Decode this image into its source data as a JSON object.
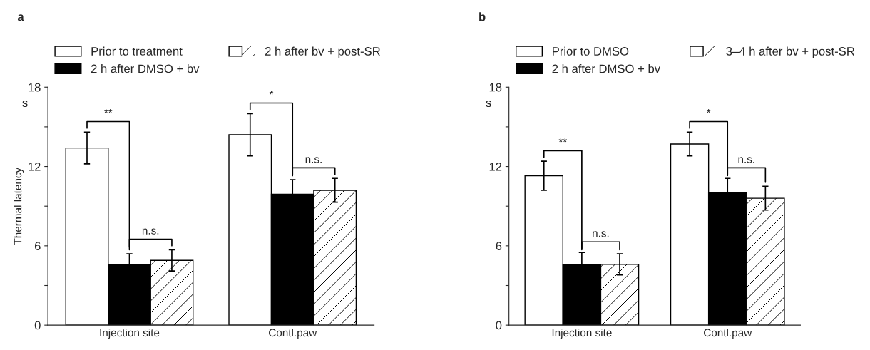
{
  "chart_data": [
    {
      "type": "bar",
      "title": "a",
      "ylabel": "Thermal latency",
      "categories": [
        "Injection site",
        "Contl.paw"
      ],
      "series": [
        {
          "name": "Prior to treatment",
          "color": "#ffffff",
          "values": [
            13.4,
            14.4
          ],
          "errors": [
            1.2,
            1.6
          ]
        },
        {
          "name": "2 h after DMSO + bv",
          "color": "#000000",
          "values": [
            4.6,
            9.9
          ],
          "errors": [
            0.8,
            1.1
          ]
        },
        {
          "name": "2 h after bv + post-SR",
          "color": "#ffffff",
          "values": [
            4.9,
            10.2
          ],
          "errors": [
            0.8,
            0.9
          ]
        }
      ],
      "ylim": [
        0,
        18
      ],
      "yticks": [
        0,
        {
          "value": 3,
          "label": null
        },
        6,
        {
          "value": 9,
          "label": null
        },
        12,
        {
          "value": 15,
          "label": null
        },
        18
      ],
      "annotations": [
        "s",
        "**",
        "n.s.",
        "*",
        "n.s."
      ],
      "grid": false,
      "legend": "top"
    },
    {
      "type": "bar",
      "title": "b",
      "categories": [
        "Injection site",
        "Contl.paw"
      ],
      "series": [
        {
          "name": "Prior to DMSO",
          "color": "#ffffff",
          "values": [
            11.3,
            13.7
          ],
          "errors": [
            1.1,
            0.9
          ]
        },
        {
          "name": "2 h after DMSO + bv",
          "color": "#000000",
          "values": [
            4.6,
            10.0
          ],
          "errors": [
            0.9,
            1.1
          ]
        },
        {
          "name": "3–4 h after bv + post-SR",
          "color": "#ffffff",
          "values": [
            4.6,
            9.6
          ],
          "errors": [
            0.8,
            0.9
          ]
        }
      ],
      "ylim": [
        0,
        18
      ],
      "yticks": [
        0,
        {
          "value": 3,
          "label": null
        },
        6,
        {
          "value": 9,
          "label": null
        },
        12,
        {
          "value": 15,
          "label": null
        },
        18
      ],
      "annotations": [
        "s",
        "**",
        "n.s.",
        "*",
        "n.s."
      ],
      "grid": false,
      "legend": "top"
    }
  ]
}
